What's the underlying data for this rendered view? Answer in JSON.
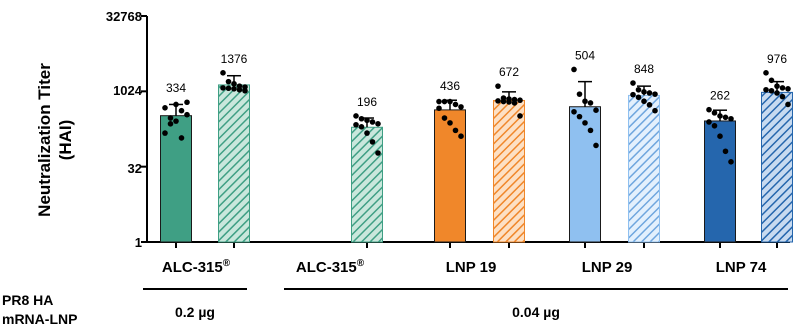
{
  "chart_data": {
    "type": "bar",
    "ylabel_line1": "Neutralization Titer",
    "ylabel_line2": "(HAI)",
    "y_scale": "log2",
    "ylim": [
      1,
      32768
    ],
    "y_ticks": [
      "32768",
      "1024",
      "32",
      "1"
    ],
    "y_tick_values": [
      32768,
      1024,
      32,
      1
    ],
    "categories": [
      "ALC-315",
      "ALC-315",
      "LNP 19",
      "LNP 29",
      "LNP 74"
    ],
    "category_superscript": [
      "®",
      "®",
      "",
      "",
      ""
    ],
    "bars": [
      {
        "category": "ALC-315",
        "dose": "0.2 µg",
        "hatched": false,
        "value": 334,
        "label": "334",
        "err_upper": 560,
        "color": "#3f9f84",
        "points": [
          480,
          300,
          560,
          420,
          350,
          150,
          230,
          260,
          120,
          620
        ]
      },
      {
        "category": "ALC-315",
        "dose": "0.2 µg",
        "hatched": true,
        "value": 1376,
        "label": "1376",
        "err_upper": 2100,
        "color": "#3f9f84",
        "points": [
          2400,
          1600,
          1450,
          1300,
          1250,
          1200,
          1180,
          1150,
          1100,
          1050
        ]
      },
      {
        "category": "ALC-315",
        "dose": "0.04 µg",
        "hatched": true,
        "value": 196,
        "label": "196",
        "err_upper": 300,
        "color": "#3f9f84",
        "points": [
          330,
          290,
          270,
          250,
          230,
          220,
          200,
          150,
          100,
          60
        ]
      },
      {
        "category": "LNP 19",
        "dose": "0.04 µg",
        "hatched": false,
        "value": 436,
        "label": "436",
        "err_upper": 680,
        "color": "#f0872a",
        "points": [
          640,
          640,
          640,
          560,
          500,
          470,
          300,
          240,
          170,
          130
        ]
      },
      {
        "category": "LNP 19",
        "dose": "0.04 µg",
        "hatched": true,
        "value": 672,
        "label": "672",
        "err_upper": 1000,
        "color": "#f0872a",
        "points": [
          1300,
          750,
          720,
          700,
          680,
          660,
          640,
          630,
          600,
          330
        ]
      },
      {
        "category": "LNP 29",
        "dose": "0.04 µg",
        "hatched": false,
        "value": 504,
        "label": "504",
        "err_upper": 1600,
        "color": "#8fc0f0",
        "points": [
          2800,
          900,
          650,
          600,
          430,
          400,
          320,
          240,
          170,
          85
        ]
      },
      {
        "category": "LNP 29",
        "dose": "0.04 µg",
        "hatched": true,
        "value": 848,
        "label": "848",
        "err_upper": 1300,
        "color": "#8fc0f0",
        "points": [
          1500,
          1100,
          1000,
          950,
          900,
          880,
          780,
          650,
          550,
          420
        ]
      },
      {
        "category": "LNP 74",
        "dose": "0.04 µg",
        "hatched": false,
        "value": 262,
        "label": "262",
        "err_upper": 430,
        "color": "#2566ad",
        "points": [
          440,
          380,
          330,
          310,
          290,
          250,
          210,
          130,
          65,
          40
        ]
      },
      {
        "category": "LNP 74",
        "dose": "0.04 µg",
        "hatched": true,
        "value": 976,
        "label": "976",
        "err_upper": 1600,
        "color": "#2566ad",
        "points": [
          2400,
          1700,
          1300,
          1200,
          1150,
          1100,
          1050,
          950,
          800,
          560
        ]
      }
    ],
    "row_label_line1": "PR8 HA",
    "row_label_line2": "mRNA-LNP",
    "dose_groups": [
      "0.2 µg",
      "0.04 µg"
    ]
  }
}
